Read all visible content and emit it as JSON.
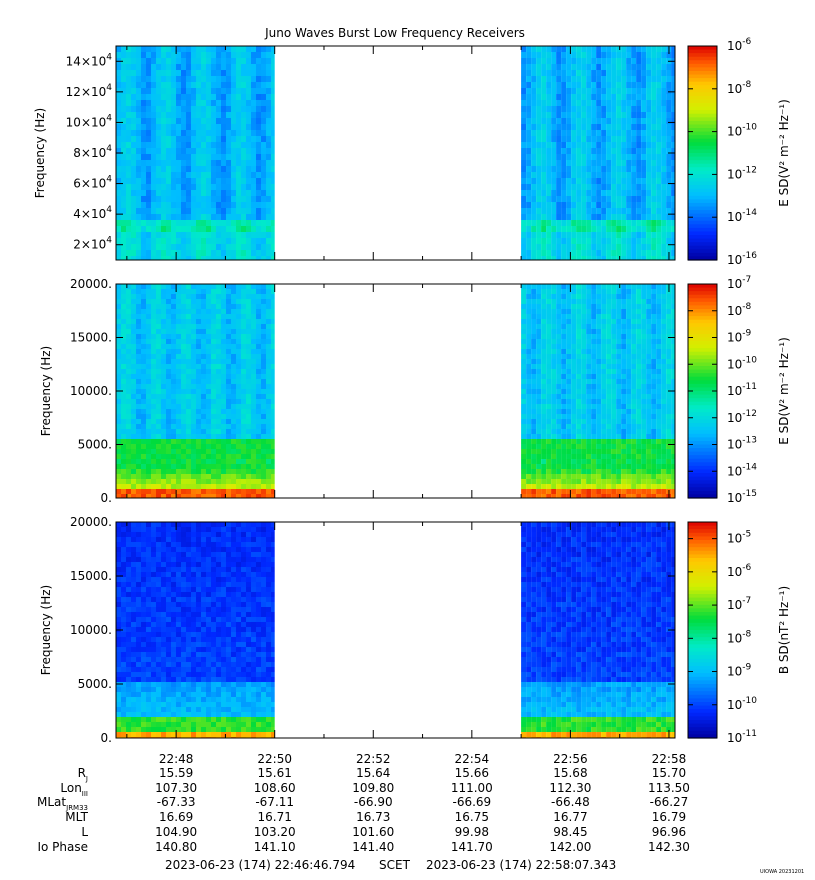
{
  "chart_data": [
    {
      "type": "heatmap",
      "title": "Juno Waves Burst Low Frequency Receivers",
      "ylabel": "Frequency (Hz)",
      "colorbar_label": "E SD(V² m⁻² Hz⁻¹)",
      "colorbar_ticks": [
        {
          "base": "10",
          "exp": "-6"
        },
        {
          "base": "10",
          "exp": "-8"
        },
        {
          "base": "10",
          "exp": "-10"
        },
        {
          "base": "10",
          "exp": "-12"
        },
        {
          "base": "10",
          "exp": "-14"
        },
        {
          "base": "10",
          "exp": "-16"
        }
      ],
      "ytick_labels": [
        {
          "mant": "14×10",
          "exp": "4"
        },
        {
          "mant": "12×10",
          "exp": "4"
        },
        {
          "mant": "10×10",
          "exp": "4"
        },
        {
          "mant": "8×10",
          "exp": "4"
        },
        {
          "mant": "6×10",
          "exp": "4"
        },
        {
          "mant": "4×10",
          "exp": "4"
        },
        {
          "mant": "2×10",
          "exp": "4"
        }
      ],
      "ylim": [
        10000,
        150000
      ],
      "zlim_log10": [
        -16,
        -6
      ],
      "data_intervals": [
        "22:46:46 – 22:50:00",
        "22:55:00 – 22:58:07"
      ],
      "colormap": "rainbow"
    },
    {
      "type": "heatmap",
      "ylabel": "Frequency (Hz)",
      "colorbar_label": "E SD(V² m⁻² Hz⁻¹)",
      "colorbar_ticks": [
        {
          "base": "10",
          "exp": "-7"
        },
        {
          "base": "10",
          "exp": "-8"
        },
        {
          "base": "10",
          "exp": "-9"
        },
        {
          "base": "10",
          "exp": "-10"
        },
        {
          "base": "10",
          "exp": "-11"
        },
        {
          "base": "10",
          "exp": "-12"
        },
        {
          "base": "10",
          "exp": "-13"
        },
        {
          "base": "10",
          "exp": "-14"
        },
        {
          "base": "10",
          "exp": "-15"
        }
      ],
      "ytick_labels": [
        "20000.",
        "15000.",
        "10000.",
        "5000.",
        "0."
      ],
      "ylim": [
        0,
        20000
      ],
      "zlim_log10": [
        -15,
        -7
      ],
      "data_intervals": [
        "22:46:46 – 22:50:00",
        "22:55:00 – 22:58:07"
      ],
      "colormap": "rainbow"
    },
    {
      "type": "heatmap",
      "ylabel": "Frequency (Hz)",
      "colorbar_label": "B SD(nT² Hz⁻¹)",
      "colorbar_ticks": [
        {
          "base": "10",
          "exp": "-5"
        },
        {
          "base": "10",
          "exp": "-6"
        },
        {
          "base": "10",
          "exp": "-7"
        },
        {
          "base": "10",
          "exp": "-8"
        },
        {
          "base": "10",
          "exp": "-9"
        },
        {
          "base": "10",
          "exp": "-10"
        },
        {
          "base": "10",
          "exp": "-11"
        }
      ],
      "ytick_labels": [
        "20000.",
        "15000.",
        "10000.",
        "5000.",
        "0."
      ],
      "ylim": [
        0,
        20000
      ],
      "zlim_log10": [
        -11,
        -4.5
      ],
      "data_intervals": [
        "22:46:46 – 22:50:00",
        "22:55:00 – 22:58:07"
      ],
      "colormap": "rainbow"
    }
  ],
  "xaxis": {
    "ticks": [
      "22:48",
      "22:50",
      "22:52",
      "22:54",
      "22:56",
      "22:58"
    ],
    "row_labels": [
      {
        "main": "R",
        "sub": "J"
      },
      {
        "main": "Lon",
        "sub": "III"
      },
      {
        "main": "MLat",
        "sub": "JRM33"
      },
      {
        "main": "MLT",
        "sub": ""
      },
      {
        "main": "L",
        "sub": ""
      },
      {
        "main": "Io Phase",
        "sub": ""
      }
    ],
    "rows": [
      [
        "15.59",
        "15.61",
        "15.64",
        "15.66",
        "15.68",
        "15.70"
      ],
      [
        "107.30",
        "108.60",
        "109.80",
        "111.00",
        "112.30",
        "113.50"
      ],
      [
        "-67.33",
        "-67.11",
        "-66.90",
        "-66.69",
        "-66.48",
        "-66.27"
      ],
      [
        "16.69",
        "16.71",
        "16.73",
        "16.75",
        "16.77",
        "16.79"
      ],
      [
        "104.90",
        "103.20",
        "101.60",
        "99.98",
        "98.45",
        "96.96"
      ],
      [
        "140.80",
        "141.10",
        "141.40",
        "141.70",
        "142.00",
        "142.30"
      ]
    ]
  },
  "footer": {
    "start": "2023-06-23 (174) 22:46:46.794",
    "scet": "SCET",
    "end": "2023-06-23 (174) 22:58:07.343",
    "stamp": "UIOWA 20231201"
  }
}
